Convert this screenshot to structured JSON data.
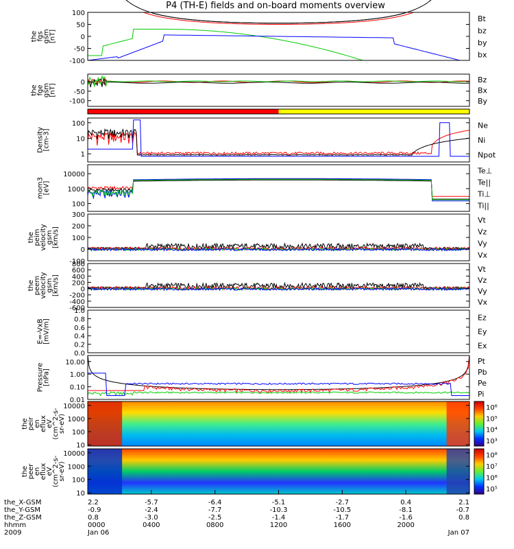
{
  "title": "P4 (TH-E) fields and on-board moments overview",
  "colors": {
    "black": "#000000",
    "red": "#ff0000",
    "green": "#00cc00",
    "blue": "#0000ff",
    "yellow": "#ffff00"
  },
  "chart_data": [
    {
      "type": "line",
      "ylabel": [
        "the",
        "fgs",
        "gsm",
        "[nT]"
      ],
      "ytick_labels": [
        "100",
        "50",
        "0",
        "-50",
        "-100"
      ],
      "ytick_values": [
        100,
        50,
        0,
        -50,
        -100
      ],
      "ylim": [
        -100,
        100
      ],
      "legend": [
        {
          "label": "Bt",
          "color": "#000000"
        },
        {
          "label": "bz",
          "color": "#ff0000"
        },
        {
          "label": "by",
          "color": "#00cc00"
        },
        {
          "label": "bx",
          "color": "#0000ff"
        }
      ]
    },
    {
      "type": "line",
      "ylabel": [
        "the",
        "fge",
        "gsm",
        "[nT]"
      ],
      "ytick_labels": [
        "0",
        "-50",
        "-100"
      ],
      "ytick_values": [
        0,
        -50,
        -100
      ],
      "ylim": [
        -130,
        40
      ],
      "legend": [
        {
          "label": "Bz",
          "color": "#ff0000"
        },
        {
          "label": "Bx",
          "color": "#000000"
        },
        {
          "label": "By",
          "color": "#00cc00"
        }
      ]
    },
    {
      "type": "bar",
      "ylabel": [],
      "segments": [
        {
          "color": "#ff0000",
          "from": "0000",
          "to": "1200"
        },
        {
          "color": "#ffff00",
          "from": "1200",
          "to": "2400"
        }
      ]
    },
    {
      "type": "line",
      "ylabel": [
        "Density",
        "[cm-3]"
      ],
      "scale": "log",
      "ytick_labels": [
        "100",
        "10",
        "1"
      ],
      "ytick_values": [
        100,
        10,
        1
      ],
      "ylim": [
        0.3,
        200
      ],
      "legend": [
        {
          "label": "Ne",
          "color": "#ff0000"
        },
        {
          "label": "Ni",
          "color": "#000000"
        },
        {
          "label": "Npot",
          "color": "#0000ff"
        }
      ]
    },
    {
      "type": "line",
      "ylabel": [
        "mom3",
        "[eV]"
      ],
      "scale": "log",
      "ytick_labels": [
        "10000",
        "1000",
        "100"
      ],
      "ytick_values": [
        10000,
        1000,
        100
      ],
      "ylim": [
        30,
        40000
      ],
      "legend": [
        {
          "label": "Te⊥",
          "color": "#ff0000"
        },
        {
          "label": "Te||",
          "color": "#000000"
        },
        {
          "label": "Ti⊥",
          "color": "#0000ff"
        },
        {
          "label": "Ti||",
          "color": "#00cc00"
        }
      ]
    },
    {
      "type": "line",
      "ylabel": [
        "the",
        "peim",
        "velocity",
        "gsm",
        "[km/s]"
      ],
      "ytick_labels": [
        "300",
        "200",
        "100",
        "0",
        "-100"
      ],
      "ytick_values": [
        300,
        200,
        100,
        0,
        -100
      ],
      "ylim": [
        -100,
        300
      ],
      "legend": [
        {
          "label": "Vt",
          "color": "#000000"
        },
        {
          "label": "Vz",
          "color": "#ff0000"
        },
        {
          "label": "Vy",
          "color": "#00cc00"
        },
        {
          "label": "Vx",
          "color": "#0000ff"
        }
      ]
    },
    {
      "type": "line",
      "ylabel": [
        "the",
        "peem",
        "velocity",
        "gsm",
        "[km/s]"
      ],
      "ytick_labels": [
        "800",
        "600",
        "400",
        "200",
        "0",
        "-200",
        "-400",
        "-600"
      ],
      "ytick_values": [
        800,
        600,
        400,
        200,
        0,
        -200,
        -400,
        -600
      ],
      "ylim": [
        -600,
        800
      ],
      "legend": [
        {
          "label": "Vt",
          "color": "#000000"
        },
        {
          "label": "Vz",
          "color": "#ff0000"
        },
        {
          "label": "Vy",
          "color": "#00cc00"
        },
        {
          "label": "Vx",
          "color": "#0000ff"
        }
      ]
    },
    {
      "type": "line",
      "ylabel": [
        "E=-VxB",
        "[mV/m]"
      ],
      "ytick_labels": [
        "1.0",
        "0.8",
        "0.6",
        "0.4",
        "0.2",
        "0.0"
      ],
      "ytick_values": [
        1.0,
        0.8,
        0.6,
        0.4,
        0.2,
        0.0
      ],
      "ylim": [
        0,
        1
      ],
      "legend": [
        {
          "label": "Ez",
          "color": "#ff0000"
        },
        {
          "label": "Ey",
          "color": "#00cc00"
        },
        {
          "label": "Ex",
          "color": "#0000ff"
        }
      ]
    },
    {
      "type": "line",
      "ylabel": [
        "Pressure",
        "[nPa]"
      ],
      "scale": "log",
      "ytick_labels": [
        "10.00",
        "1.00",
        "0.10",
        "0.01"
      ],
      "ytick_values": [
        10,
        1,
        0.1,
        0.01
      ],
      "ylim": [
        0.01,
        30
      ],
      "legend": [
        {
          "label": "Pt",
          "color": "#000000"
        },
        {
          "label": "Pb",
          "color": "#ff0000"
        },
        {
          "label": "Pe",
          "color": "#00cc00"
        },
        {
          "label": "Pi",
          "color": "#0000ff"
        }
      ]
    },
    {
      "type": "heatmap",
      "ylabel": [
        "the",
        "peir",
        "en",
        "eflux",
        "eV",
        "(cm^2-s-",
        "sr-eV)"
      ],
      "scale": "log",
      "ytick_labels": [
        "10000",
        "1000",
        "100",
        "10"
      ],
      "ytick_values": [
        10000,
        1000,
        100,
        10
      ],
      "ylim": [
        8,
        20000
      ],
      "colorbar": {
        "ticks": [
          "10⁶",
          "10⁵",
          "10⁴",
          "10³"
        ],
        "values": [
          1000000,
          100000,
          10000,
          1000
        ]
      }
    },
    {
      "type": "heatmap",
      "ylabel": [
        "the",
        "peer",
        "en",
        "eflux",
        "eV",
        "(cm^2-s-",
        "sr-eV)"
      ],
      "scale": "log",
      "ytick_labels": [
        "10000",
        "1000",
        "100",
        "10"
      ],
      "ytick_values": [
        10000,
        1000,
        100,
        10
      ],
      "ylim": [
        8,
        20000
      ],
      "colorbar": {
        "ticks": [
          "10⁸",
          "10⁷",
          "10⁶",
          "10⁵"
        ],
        "values": [
          100000000,
          10000000,
          1000000,
          100000
        ]
      }
    }
  ],
  "x_axis": {
    "labels": [
      "the_X-GSM",
      "the_Y-GSM",
      "the_Z-GSM",
      "hhmm",
      "2009"
    ],
    "ticks": [
      {
        "rows": [
          "2.2",
          "-0.9",
          "0.8",
          "0000",
          "Jan 06"
        ]
      },
      {
        "rows": [
          "-5.7",
          "-2.4",
          "-3.0",
          "0400",
          ""
        ]
      },
      {
        "rows": [
          "-6.4",
          "-7.7",
          "-2.5",
          "0800",
          ""
        ]
      },
      {
        "rows": [
          "-5.1",
          "-10.3",
          "-1.4",
          "1200",
          ""
        ]
      },
      {
        "rows": [
          "-2.7",
          "-10.5",
          "-1.7",
          "1600",
          ""
        ]
      },
      {
        "rows": [
          "0.4",
          "-8.1",
          "-1.6",
          "2000",
          ""
        ]
      },
      {
        "rows": [
          "2.1",
          "-0.7",
          "0.8",
          "",
          "Jan 07"
        ]
      }
    ]
  }
}
